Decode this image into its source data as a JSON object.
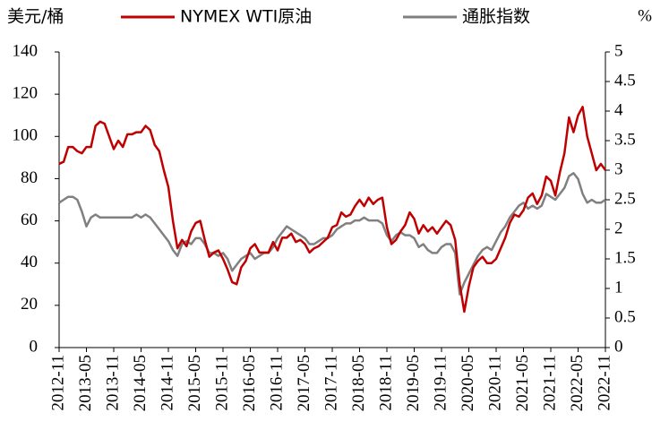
{
  "chart_data": {
    "type": "line",
    "y_label": "美元/桶",
    "y2_label": "%",
    "x": [
      "2012-11",
      "2012-12",
      "2013-01",
      "2013-02",
      "2013-03",
      "2013-04",
      "2013-05",
      "2013-06",
      "2013-07",
      "2013-08",
      "2013-09",
      "2013-10",
      "2013-11",
      "2013-12",
      "2014-01",
      "2014-02",
      "2014-03",
      "2014-04",
      "2014-05",
      "2014-06",
      "2014-07",
      "2014-08",
      "2014-09",
      "2014-10",
      "2014-11",
      "2014-12",
      "2015-01",
      "2015-02",
      "2015-03",
      "2015-04",
      "2015-05",
      "2015-06",
      "2015-07",
      "2015-08",
      "2015-09",
      "2015-10",
      "2015-11",
      "2015-12",
      "2016-01",
      "2016-02",
      "2016-03",
      "2016-04",
      "2016-05",
      "2016-06",
      "2016-07",
      "2016-08",
      "2016-09",
      "2016-10",
      "2016-11",
      "2016-12",
      "2017-01",
      "2017-02",
      "2017-03",
      "2017-04",
      "2017-05",
      "2017-06",
      "2017-07",
      "2017-08",
      "2017-09",
      "2017-10",
      "2017-11",
      "2017-12",
      "2018-01",
      "2018-02",
      "2018-03",
      "2018-04",
      "2018-05",
      "2018-06",
      "2018-07",
      "2018-08",
      "2018-09",
      "2018-10",
      "2018-11",
      "2018-12",
      "2019-01",
      "2019-02",
      "2019-03",
      "2019-04",
      "2019-05",
      "2019-06",
      "2019-07",
      "2019-08",
      "2019-09",
      "2019-10",
      "2019-11",
      "2019-12",
      "2020-01",
      "2020-02",
      "2020-03",
      "2020-04",
      "2020-05",
      "2020-06",
      "2020-07",
      "2020-08",
      "2020-09",
      "2020-10",
      "2020-11",
      "2020-12",
      "2021-01",
      "2021-02",
      "2021-03",
      "2021-04",
      "2021-05",
      "2021-06",
      "2021-07",
      "2021-08",
      "2021-09",
      "2021-10",
      "2021-11",
      "2021-12",
      "2022-01",
      "2022-02",
      "2022-03",
      "2022-04",
      "2022-05",
      "2022-06",
      "2022-07",
      "2022-08",
      "2022-09",
      "2022-10",
      "2022-11"
    ],
    "xticks": [
      "2012-11",
      "2013-05",
      "2013-11",
      "2014-05",
      "2014-11",
      "2015-05",
      "2015-11",
      "2016-05",
      "2016-11",
      "2017-05",
      "2017-11",
      "2018-05",
      "2018-11",
      "2019-05",
      "2019-11",
      "2020-05",
      "2020-11",
      "2021-05",
      "2021-11",
      "2022-05",
      "2022-11"
    ],
    "series": [
      {
        "name": "NYMEX WTI原油",
        "color": "#c00000",
        "axis": "y",
        "values": [
          87,
          88,
          95,
          95,
          93,
          92,
          95,
          95,
          105,
          107,
          106,
          100,
          94,
          98,
          95,
          101,
          101,
          102,
          102,
          105,
          103,
          96,
          93,
          84,
          76,
          60,
          47,
          51,
          48,
          55,
          59,
          60,
          51,
          43,
          45,
          46,
          42,
          37,
          31,
          30,
          38,
          41,
          47,
          49,
          45,
          45,
          45,
          50,
          46,
          52,
          52,
          54,
          50,
          51,
          49,
          45,
          47,
          48,
          50,
          52,
          57,
          58,
          64,
          62,
          63,
          67,
          70,
          67,
          71,
          68,
          70,
          71,
          57,
          49,
          51,
          55,
          58,
          64,
          61,
          54,
          58,
          55,
          57,
          54,
          57,
          60,
          58,
          51,
          30,
          17,
          29,
          38,
          41,
          43,
          40,
          40,
          42,
          47,
          52,
          59,
          63,
          62,
          65,
          71,
          73,
          68,
          72,
          81,
          79,
          72,
          83,
          92,
          109,
          102,
          110,
          114,
          100,
          92,
          84,
          87,
          84
        ]
      },
      {
        "name": "通胀指数",
        "color": "#808080",
        "axis": "y2",
        "values": [
          2.45,
          2.5,
          2.55,
          2.55,
          2.5,
          2.3,
          2.05,
          2.2,
          2.25,
          2.2,
          2.2,
          2.2,
          2.2,
          2.2,
          2.2,
          2.2,
          2.2,
          2.25,
          2.2,
          2.25,
          2.2,
          2.1,
          2.0,
          1.9,
          1.8,
          1.65,
          1.55,
          1.75,
          1.8,
          1.75,
          1.85,
          1.85,
          1.75,
          1.6,
          1.6,
          1.55,
          1.6,
          1.5,
          1.3,
          1.4,
          1.5,
          1.55,
          1.6,
          1.5,
          1.55,
          1.6,
          1.6,
          1.7,
          1.85,
          1.95,
          2.05,
          2.0,
          1.95,
          1.9,
          1.85,
          1.75,
          1.75,
          1.8,
          1.85,
          1.85,
          1.9,
          2.0,
          2.05,
          2.1,
          2.1,
          2.15,
          2.15,
          2.2,
          2.15,
          2.15,
          2.15,
          2.1,
          1.9,
          1.8,
          1.9,
          1.95,
          1.9,
          1.9,
          1.85,
          1.7,
          1.75,
          1.65,
          1.6,
          1.6,
          1.7,
          1.75,
          1.75,
          1.6,
          0.9,
          1.1,
          1.25,
          1.4,
          1.55,
          1.65,
          1.7,
          1.65,
          1.8,
          1.95,
          2.05,
          2.2,
          2.3,
          2.4,
          2.45,
          2.35,
          2.4,
          2.35,
          2.4,
          2.6,
          2.55,
          2.5,
          2.6,
          2.7,
          2.9,
          2.95,
          2.85,
          2.6,
          2.45,
          2.5,
          2.45,
          2.45,
          2.5
        ]
      }
    ],
    "ylim": [
      0,
      140
    ],
    "yticks": [
      0,
      20,
      40,
      60,
      80,
      100,
      120,
      140
    ],
    "y2lim": [
      0,
      5
    ],
    "y2ticks": [
      0,
      0.5,
      1,
      1.5,
      2,
      2.5,
      3,
      3.5,
      4,
      4.5,
      5
    ],
    "grid": false
  }
}
